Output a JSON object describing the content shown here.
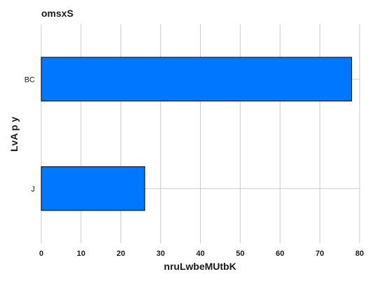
{
  "chart_data": {
    "type": "bar",
    "orientation": "horizontal",
    "title": "omsxS",
    "xlabel": "nruLwbeMUtbK",
    "ylabel": "LvA p  y",
    "categories": [
      "BC",
      "J"
    ],
    "values": [
      78,
      26
    ],
    "xlim": [
      0,
      80
    ],
    "xticks": [
      0,
      10,
      20,
      30,
      40,
      50,
      60,
      70,
      80
    ],
    "grid": true,
    "bar_color": "#0077ff",
    "edge_color": "#000000"
  }
}
